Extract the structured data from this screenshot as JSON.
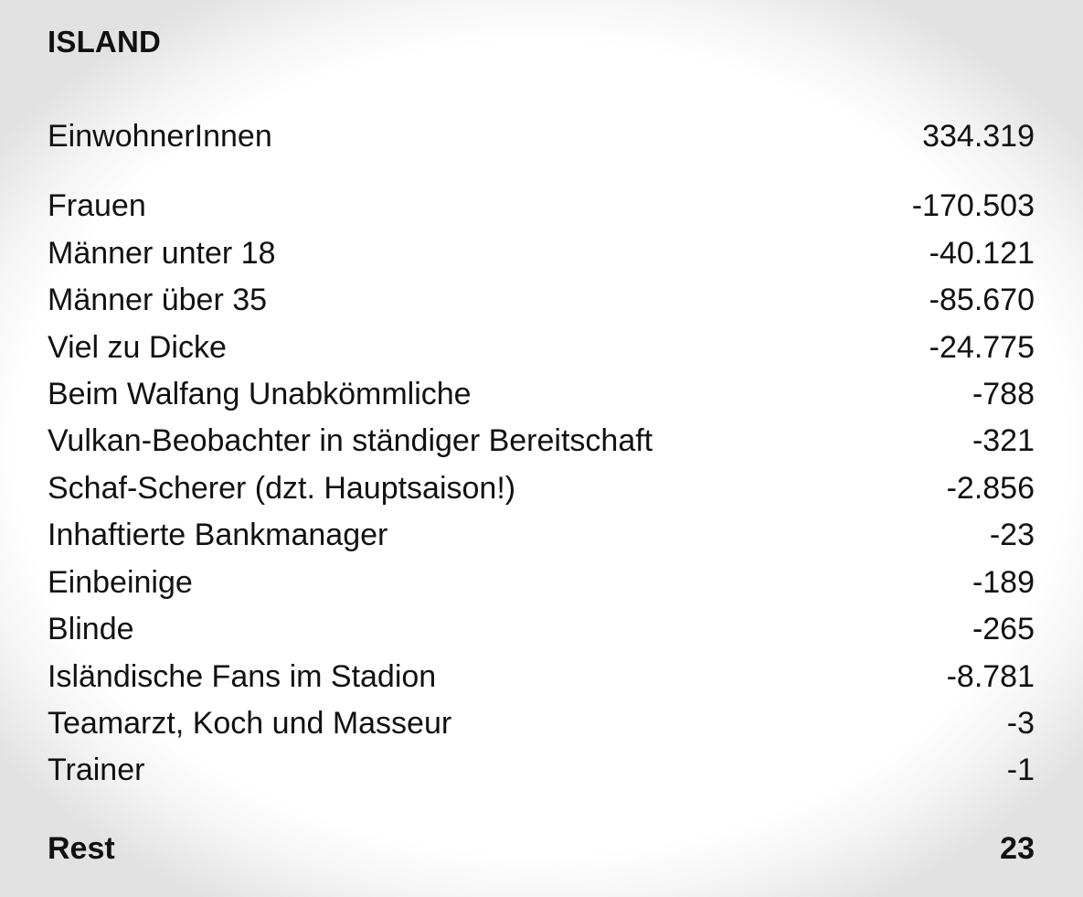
{
  "title": "ISLAND",
  "population": {
    "label": "EinwohnerInnen",
    "value": "334.319"
  },
  "deductions": [
    {
      "label": "Frauen",
      "value": "-170.503"
    },
    {
      "label": "Männer unter 18",
      "value": "-40.121"
    },
    {
      "label": "Männer über 35",
      "value": "-85.670"
    },
    {
      "label": "Viel zu Dicke",
      "value": "-24.775"
    },
    {
      "label": "Beim Walfang Unabkömmliche",
      "value": "-788"
    },
    {
      "label": "Vulkan-Beobachter in ständiger Bereitschaft",
      "value": "-321"
    },
    {
      "label": "Schaf-Scherer (dzt. Hauptsaison!)",
      "value": "-2.856"
    },
    {
      "label": "Inhaftierte Bankmanager",
      "value": "-23"
    },
    {
      "label": "Einbeinige",
      "value": "-189"
    },
    {
      "label": "Blinde",
      "value": "-265"
    },
    {
      "label": "Isländische Fans im Stadion",
      "value": "-8.781"
    },
    {
      "label": "Teamarzt, Koch und Masseur",
      "value": "-3"
    },
    {
      "label": "Trainer",
      "value": "-1"
    }
  ],
  "total": {
    "label": "Rest",
    "value": "23"
  }
}
